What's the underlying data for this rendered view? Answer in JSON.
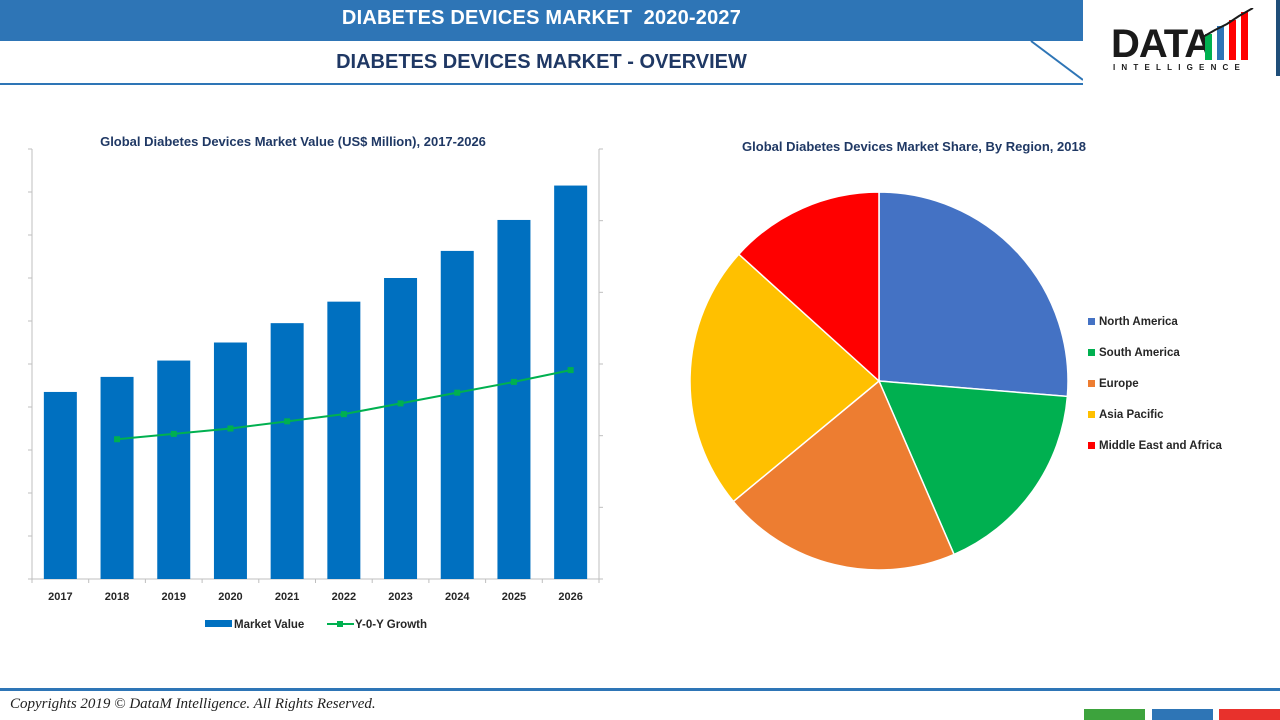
{
  "header": {
    "title": "DIABETES DEVICES MARKET  2020-2027",
    "subtitle": "DIABETES DEVICES MARKET - OVERVIEW",
    "band_color": "#2e75b6"
  },
  "logo": {
    "word": "DATA",
    "sub": "INTELLIGENCE",
    "bar_colors": [
      "#00b050",
      "#2e75b6",
      "#ff0000",
      "#ff0000"
    ]
  },
  "chart_data": [
    {
      "type": "bar",
      "title": "Global Diabetes Devices Market Value (US$ Million), 2017-2026",
      "categories": [
        "2017",
        "2018",
        "2019",
        "2020",
        "2021",
        "2022",
        "2023",
        "2024",
        "2025",
        "2026"
      ],
      "series": [
        {
          "name": "Market Value",
          "kind": "bar",
          "color": "#0070c0",
          "values": [
            43.5,
            47.0,
            50.8,
            55.0,
            59.5,
            64.5,
            70.0,
            76.3,
            83.5,
            91.5
          ]
        },
        {
          "name": "Y-0-Y Growth",
          "kind": "line",
          "color": "#00b050",
          "axis": "right",
          "values": [
            null,
            3.9,
            4.05,
            4.2,
            4.4,
            4.6,
            4.9,
            5.2,
            5.5,
            5.83
          ]
        }
      ],
      "ylim": [
        0,
        100
      ],
      "y2lim": [
        0,
        12
      ],
      "legend": "bottom",
      "grid": false
    },
    {
      "type": "pie",
      "title": "Global Diabetes Devices Market Share, By Region, 2018",
      "labels": [
        "North America",
        "South America",
        "Europe",
        "Asia Pacific",
        "Middle East and Africa"
      ],
      "values": [
        26.3,
        17.2,
        20.5,
        22.7,
        13.3
      ],
      "colors": [
        "#4472c4",
        "#00b050",
        "#ed7d31",
        "#ffc000",
        "#ff0000"
      ],
      "legend": "right"
    }
  ],
  "footer": {
    "copyright": "Copyrights 2019 © DataM Intelligence. All Rights Reserved.",
    "tab_colors": [
      "#3da33d",
      "#2e75b6",
      "#e8312c"
    ]
  }
}
